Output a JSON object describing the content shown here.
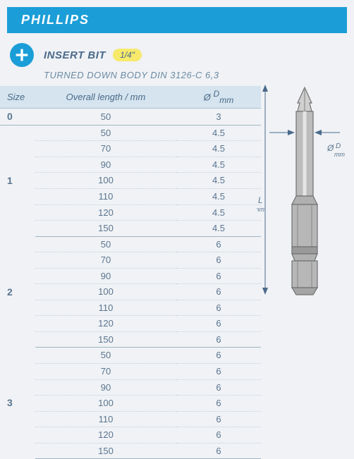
{
  "header": {
    "title": "PHILLIPS"
  },
  "product": {
    "title": "INSERT BIT",
    "badge": "1/4\"",
    "subtitle": "TURNED DOWN BODY DIN 3126-C 6,3"
  },
  "table": {
    "columns": [
      "Size",
      "Overall length / mm",
      "Ø D mm"
    ],
    "groups": [
      {
        "size": "0",
        "rows": [
          {
            "len": "50",
            "d": "3"
          }
        ]
      },
      {
        "size": "1",
        "rows": [
          {
            "len": "50",
            "d": "4.5"
          },
          {
            "len": "70",
            "d": "4.5"
          },
          {
            "len": "90",
            "d": "4.5"
          },
          {
            "len": "100",
            "d": "4.5"
          },
          {
            "len": "110",
            "d": "4.5"
          },
          {
            "len": "120",
            "d": "4.5"
          },
          {
            "len": "150",
            "d": "4.5"
          }
        ]
      },
      {
        "size": "2",
        "rows": [
          {
            "len": "50",
            "d": "6"
          },
          {
            "len": "70",
            "d": "6"
          },
          {
            "len": "90",
            "d": "6"
          },
          {
            "len": "100",
            "d": "6"
          },
          {
            "len": "110",
            "d": "6"
          },
          {
            "len": "120",
            "d": "6"
          },
          {
            "len": "150",
            "d": "6"
          }
        ]
      },
      {
        "size": "3",
        "rows": [
          {
            "len": "50",
            "d": "6"
          },
          {
            "len": "70",
            "d": "6"
          },
          {
            "len": "90",
            "d": "6"
          },
          {
            "len": "100",
            "d": "6"
          },
          {
            "len": "110",
            "d": "6"
          },
          {
            "len": "120",
            "d": "6"
          },
          {
            "len": "150",
            "d": "6"
          }
        ]
      }
    ]
  },
  "diagram": {
    "label_L": "L",
    "label_L_unit": "mm",
    "label_D": "Ø D",
    "label_D_unit": "mm"
  },
  "colors": {
    "primary": "#1b9ed8",
    "text": "#4a6a8a",
    "subtext": "#6b8aa5",
    "thead_bg": "#d5e4ee",
    "row_border": "#c4d2de",
    "group_border": "#9fb5c5",
    "badge_bg": "#f6e96b",
    "bit_fill": "#b7b7b7",
    "bit_stroke": "#707070"
  }
}
